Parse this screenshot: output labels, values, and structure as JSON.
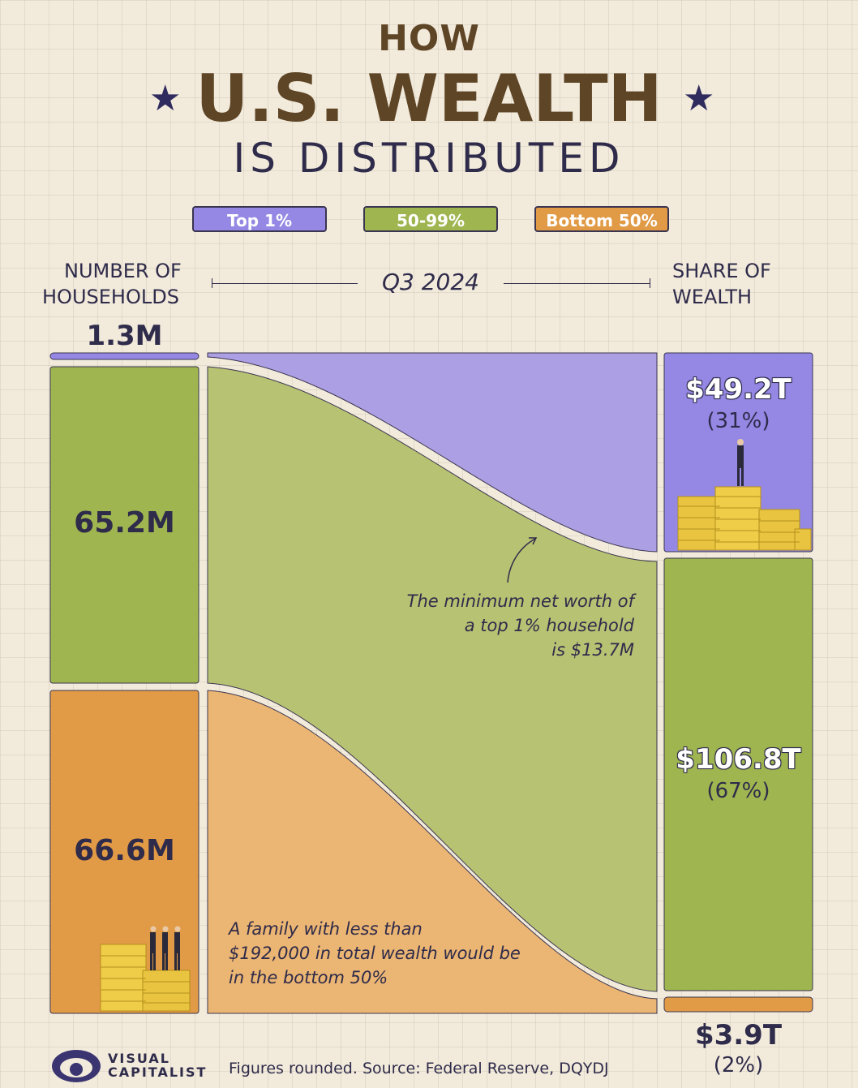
{
  "title": {
    "line1": "HOW",
    "line2": "U.S. WEALTH",
    "line3": "IS DISTRIBUTED",
    "star": "★"
  },
  "legend": [
    {
      "label": "Top 1%",
      "color": "#9488e4"
    },
    {
      "label": "50-99%",
      "color": "#9fb550"
    },
    {
      "label": "Bottom 50%",
      "color": "#e19a45"
    }
  ],
  "headers": {
    "left_line1": "NUMBER OF",
    "left_line2": "HOUSEHOLDS",
    "period": "Q3 2024",
    "right_line1": "SHARE OF",
    "right_line2": "WEALTH"
  },
  "chart_data": {
    "type": "sankey",
    "period": "Q3 2024",
    "groups": [
      {
        "name": "Top 1%",
        "households_label": "1.3M",
        "households_m": 1.3,
        "wealth_label": "$49.2T",
        "wealth_t": 49.2,
        "share_label": "(31%)",
        "share_pct": 31,
        "color": "#9488e4",
        "flow_color": "#ad9fe3"
      },
      {
        "name": "50-99%",
        "households_label": "65.2M",
        "households_m": 65.2,
        "wealth_label": "$106.8T",
        "wealth_t": 106.8,
        "share_label": "(67%)",
        "share_pct": 67,
        "color": "#9fb550",
        "flow_color": "#b7c273"
      },
      {
        "name": "Bottom 50%",
        "households_label": "66.6M",
        "households_m": 66.6,
        "wealth_label": "$3.9T",
        "wealth_t": 3.9,
        "share_label": "(2%)",
        "share_pct": 2,
        "color": "#e19a45",
        "flow_color": "#ebb573"
      }
    ]
  },
  "annotations": {
    "top1_line1": "The minimum net worth of",
    "top1_line2": "a top 1% household",
    "top1_line3": "is $13.7M",
    "bottom_line1": "A family with less than",
    "bottom_line2": "$192,000 in total wealth would be",
    "bottom_line3": "in the bottom 50%"
  },
  "footer": {
    "brand_line1": "VISUAL",
    "brand_line2": "CAPITALIST",
    "source": "Figures rounded. Source: Federal Reserve, DQYDJ"
  }
}
